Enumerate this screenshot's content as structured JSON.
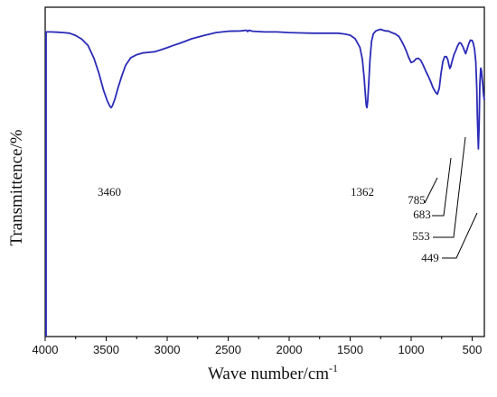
{
  "chart_data": {
    "type": "line",
    "title": "",
    "xlabel": "Wave number/cm",
    "xlabel_sup": "-1",
    "ylabel": "Transmittence/%",
    "xlim": [
      4000,
      400
    ],
    "ylim": [
      0,
      100
    ],
    "x_ticks": [
      4000,
      3500,
      3000,
      2500,
      2000,
      1500,
      1000,
      500
    ],
    "y_ticks_shown": false,
    "grid": false,
    "legend": "none",
    "colors": {
      "line": "#2b2bb8",
      "axis": "#000000"
    },
    "series": [
      {
        "x": [
          4000,
          3950,
          3900,
          3850,
          3800,
          3750,
          3700,
          3650,
          3600,
          3560,
          3520,
          3490,
          3470,
          3460,
          3450,
          3430,
          3400,
          3370,
          3340,
          3300,
          3250,
          3200,
          3150,
          3100,
          3050,
          3000,
          2950,
          2900,
          2850,
          2800,
          2700,
          2600,
          2500,
          2400,
          2350,
          2340,
          2330,
          2300,
          2200,
          2100,
          2000,
          1900,
          1800,
          1700,
          1600,
          1550,
          1500,
          1460,
          1420,
          1400,
          1385,
          1375,
          1368,
          1362,
          1356,
          1348,
          1338,
          1325,
          1310,
          1290,
          1270,
          1250,
          1230,
          1210,
          1190,
          1160,
          1130,
          1100,
          1080,
          1060,
          1040,
          1020,
          1000,
          980,
          960,
          940,
          920,
          900,
          880,
          860,
          840,
          820,
          800,
          785,
          770,
          755,
          740,
          725,
          710,
          700,
          690,
          683,
          676,
          665,
          650,
          635,
          620,
          605,
          590,
          575,
          560,
          553,
          545,
          530,
          515,
          500,
          490,
          480,
          470,
          462,
          456,
          449,
          443,
          437,
          430,
          424,
          418,
          412,
          406,
          400
        ],
        "y": [
          92.5,
          92.5,
          92.4,
          92.3,
          92.1,
          91.4,
          90.3,
          88.4,
          84.5,
          80.0,
          74.6,
          71.5,
          70.0,
          69.5,
          70.0,
          72.0,
          75.9,
          79.4,
          82.4,
          84.6,
          85.6,
          86.1,
          86.3,
          86.5,
          87.1,
          87.7,
          88.4,
          89.0,
          89.7,
          90.4,
          91.4,
          92.3,
          92.7,
          92.8,
          93.0,
          92.6,
          93.0,
          92.7,
          92.5,
          92.5,
          92.3,
          92.2,
          92.1,
          92.1,
          92.1,
          91.9,
          91.5,
          90.5,
          87.8,
          84.2,
          78.5,
          73.3,
          70.2,
          69.5,
          71.5,
          76.5,
          83.8,
          89.5,
          91.9,
          92.8,
          93.1,
          93.3,
          93.0,
          92.8,
          92.8,
          92.3,
          91.9,
          91.1,
          89.8,
          88.4,
          86.7,
          84.7,
          83.2,
          83.5,
          84.3,
          84.5,
          83.8,
          82.3,
          80.6,
          79.1,
          77.4,
          75.5,
          74.2,
          73.6,
          75.4,
          80.0,
          83.5,
          85.0,
          85.0,
          84.1,
          82.5,
          81.4,
          81.9,
          83.5,
          85.5,
          86.8,
          88.2,
          89.2,
          89.0,
          87.9,
          86.5,
          85.9,
          86.8,
          88.7,
          90.0,
          89.9,
          89.0,
          87.1,
          83.5,
          75.5,
          65.5,
          57.0,
          64.0,
          76.5,
          81.5,
          80.8,
          78.3,
          75.9,
          73.2,
          71.8
        ]
      }
    ],
    "annotations": [
      {
        "text": "3460",
        "x": 3460
      },
      {
        "text": "1362",
        "x": 1362
      },
      {
        "text": "785",
        "x": 785
      },
      {
        "text": "683",
        "x": 683
      },
      {
        "text": "553",
        "x": 553
      },
      {
        "text": "449",
        "x": 449
      }
    ]
  }
}
